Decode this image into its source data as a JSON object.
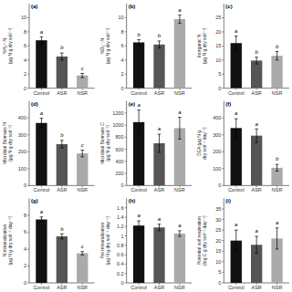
{
  "chart_data": [
    {
      "type": "bar",
      "title": "(a)",
      "ylabel": "NH₄⁺-N\n(μg N g dry soil⁻¹)",
      "categories": [
        "Control",
        "ASR",
        "NSR"
      ],
      "values": [
        6.8,
        4.5,
        1.8
      ],
      "errors": [
        0.5,
        0.5,
        0.3
      ],
      "annotations": [
        "a",
        "b",
        "c"
      ],
      "colors": [
        "#111111",
        "#555555",
        "#aaaaaa"
      ],
      "ylim": [
        0,
        12
      ],
      "yticks": [
        0,
        2,
        4,
        6,
        8,
        10
      ],
      "grid": false
    },
    {
      "type": "bar",
      "title": "(b)",
      "ylabel": "NO₃⁻-N\n(μg N g dry soil⁻¹)",
      "categories": [
        "Control",
        "ASR",
        "NSR"
      ],
      "values": [
        6.5,
        6.2,
        9.8
      ],
      "errors": [
        0.4,
        0.5,
        0.6
      ],
      "annotations": [
        "b",
        "b",
        "a"
      ],
      "colors": [
        "#111111",
        "#555555",
        "#aaaaaa"
      ],
      "ylim": [
        0,
        12
      ],
      "yticks": [
        0,
        2,
        4,
        6,
        8,
        10
      ],
      "grid": false
    },
    {
      "type": "bar",
      "title": "(c)",
      "ylabel": "Inorganic N\n(μg N g dry soil⁻¹)",
      "categories": [
        "Control",
        "ASR",
        "NSR"
      ],
      "values": [
        16.0,
        9.8,
        11.5
      ],
      "errors": [
        2.5,
        1.2,
        1.5
      ],
      "annotations": [
        "a",
        "b",
        "b"
      ],
      "colors": [
        "#111111",
        "#555555",
        "#aaaaaa"
      ],
      "ylim": [
        0,
        30
      ],
      "yticks": [
        0,
        5,
        10,
        15,
        20,
        25
      ],
      "grid": false
    },
    {
      "type": "bar",
      "title": "(d)",
      "ylabel": "Microbial Biomass N\n(μg N g dry soil⁻¹)",
      "categories": [
        "Control",
        "ASR",
        "NSR"
      ],
      "values": [
        370,
        245,
        190
      ],
      "errors": [
        28,
        22,
        20
      ],
      "annotations": [
        "a",
        "b",
        "c"
      ],
      "colors": [
        "#111111",
        "#555555",
        "#aaaaaa"
      ],
      "ylim": [
        0,
        500
      ],
      "yticks": [
        0,
        100,
        200,
        300,
        400
      ],
      "grid": false
    },
    {
      "type": "bar",
      "title": "(e)",
      "ylabel": "Microbial Biomass C\n(μg N g dry soil⁻¹)",
      "categories": [
        "Control",
        "ASR",
        "NSR"
      ],
      "values": [
        1050,
        700,
        950
      ],
      "errors": [
        200,
        150,
        180
      ],
      "annotations": [
        "a",
        "a",
        "a"
      ],
      "colors": [
        "#111111",
        "#555555",
        "#aaaaaa"
      ],
      "ylim": [
        0,
        1400
      ],
      "yticks": [
        0,
        200,
        400,
        600,
        800,
        1000,
        1200
      ],
      "grid": false
    },
    {
      "type": "bar",
      "title": "(f)",
      "ylabel": "DEA (μg N g\ndry soil⁻¹ day⁻¹)",
      "categories": [
        "Control",
        "ASR",
        "NSR"
      ],
      "values": [
        340,
        295,
        105
      ],
      "errors": [
        55,
        40,
        20
      ],
      "annotations": [
        "a",
        "a",
        "b"
      ],
      "colors": [
        "#111111",
        "#555555",
        "#aaaaaa"
      ],
      "ylim": [
        0,
        500
      ],
      "yticks": [
        0,
        100,
        200,
        300,
        400
      ],
      "grid": false
    },
    {
      "type": "bar",
      "title": "(g)",
      "ylabel": "N mineralization\n(μg N g dry soil⁻¹ day⁻¹)",
      "categories": [
        "Control",
        "ASR",
        "NSR"
      ],
      "values": [
        7.5,
        5.5,
        3.5
      ],
      "errors": [
        0.3,
        0.3,
        0.2
      ],
      "annotations": [
        "a",
        "b",
        "c"
      ],
      "colors": [
        "#111111",
        "#555555",
        "#aaaaaa"
      ],
      "ylim": [
        0,
        10
      ],
      "yticks": [
        0,
        2,
        4,
        6,
        8
      ],
      "grid": false
    },
    {
      "type": "bar",
      "title": "(h)",
      "ylabel": "Pot mineralization\n(μg N g dry soil⁻¹ day⁻¹)",
      "categories": [
        "Control",
        "ASR",
        "NSR"
      ],
      "values": [
        1.22,
        1.18,
        1.05
      ],
      "errors": [
        0.1,
        0.07,
        0.06
      ],
      "annotations": [
        "a",
        "a",
        "a"
      ],
      "colors": [
        "#111111",
        "#555555",
        "#aaaaaa"
      ],
      "ylim": [
        0,
        1.8
      ],
      "yticks": [
        0,
        0.2,
        0.4,
        0.6,
        0.8,
        1,
        1.2,
        1.4,
        1.6
      ],
      "grid": false
    },
    {
      "type": "bar",
      "title": "(i)",
      "ylabel": "Potential soil respiration\n(log C g dry soil⁻¹ day⁻¹)",
      "categories": [
        "Control",
        "ASR",
        "NSR"
      ],
      "values": [
        20,
        18,
        21
      ],
      "errors": [
        5,
        4,
        5
      ],
      "annotations": [
        "a",
        "a",
        "a"
      ],
      "colors": [
        "#111111",
        "#555555",
        "#aaaaaa"
      ],
      "ylim": [
        0,
        40
      ],
      "yticks": [
        0,
        5,
        10,
        15,
        20,
        25,
        30,
        35
      ],
      "grid": false
    }
  ]
}
